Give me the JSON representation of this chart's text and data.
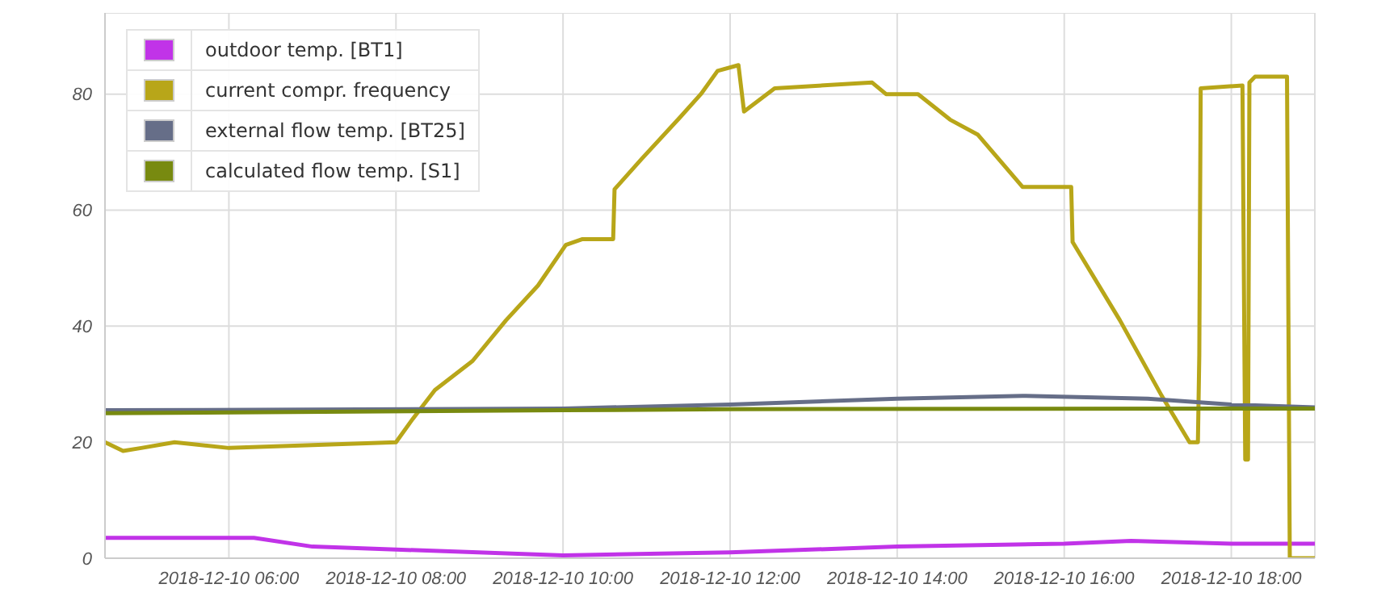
{
  "chart_data": {
    "type": "line",
    "x": [
      "2018-12-10T04:31",
      "2018-12-10T04:44",
      "2018-12-10T04:57",
      "2018-12-10T05:21",
      "2018-12-10T06:00",
      "2018-12-10T08:00",
      "2018-12-10T08:12",
      "2018-12-10T08:28",
      "2018-12-10T08:55",
      "2018-12-10T09:19",
      "2018-12-10T09:42",
      "2018-12-10T10:02",
      "2018-12-10T10:14",
      "2018-12-10T10:36",
      "2018-12-10T10:37",
      "2018-12-10T10:56",
      "2018-12-10T11:24",
      "2018-12-10T11:39",
      "2018-12-10T11:51",
      "2018-12-10T12:06",
      "2018-12-10T12:10",
      "2018-12-10T12:32",
      "2018-12-10T13:42",
      "2018-12-10T13:52",
      "2018-12-10T14:15",
      "2018-12-10T14:38",
      "2018-12-10T14:58",
      "2018-12-10T15:30",
      "2018-12-10T16:05",
      "2018-12-10T16:06",
      "2018-12-10T16:40",
      "2018-12-10T17:10",
      "2018-12-10T17:30",
      "2018-12-10T17:36",
      "2018-12-10T17:37",
      "2018-12-10T17:38",
      "2018-12-10T18:08",
      "2018-12-10T18:10",
      "2018-12-10T18:12",
      "2018-12-10T18:13",
      "2018-12-10T18:17",
      "2018-12-10T18:40",
      "2018-12-10T18:42",
      "2018-12-10T19:00"
    ],
    "series": [
      {
        "name": "outdoor temp. [BT1]",
        "color": "#c133e8",
        "x": [
          "2018-12-10T04:31",
          "2018-12-10T06:18",
          "2018-12-10T07:00",
          "2018-12-10T08:00",
          "2018-12-10T10:00",
          "2018-12-10T12:00",
          "2018-12-10T14:00",
          "2018-12-10T16:00",
          "2018-12-10T16:48",
          "2018-12-10T18:00",
          "2018-12-10T19:00"
        ],
        "values": [
          3.5,
          3.5,
          2,
          1.5,
          0.5,
          1,
          2,
          2.5,
          3,
          2.5,
          2.5
        ]
      },
      {
        "name": "current compr. frequency",
        "color": "#b8a619",
        "values": [
          20,
          18.5,
          19,
          20,
          19,
          20,
          24,
          29,
          34,
          41,
          47,
          54,
          55,
          55,
          63.6,
          68.7,
          76,
          80,
          84,
          85,
          77,
          81,
          82,
          80,
          80,
          75.6,
          73,
          64,
          64,
          54.5,
          41,
          28,
          20,
          20,
          35,
          81,
          81.5,
          17,
          17,
          82,
          83,
          83,
          0,
          0
        ]
      },
      {
        "name": "external flow temp. [BT25]",
        "color": "#666e88",
        "x": [
          "2018-12-10T04:31",
          "2018-12-10T10:00",
          "2018-12-10T12:00",
          "2018-12-10T14:00",
          "2018-12-10T15:30",
          "2018-12-10T17:00",
          "2018-12-10T18:00",
          "2018-12-10T19:00"
        ],
        "values": [
          25.5,
          25.8,
          26.5,
          27.5,
          28,
          27.5,
          26.5,
          26
        ]
      },
      {
        "name": "calculated flow temp. [S1]",
        "color": "#788a10",
        "x": [
          "2018-12-10T04:31",
          "2018-12-10T10:00",
          "2018-12-10T12:00",
          "2018-12-10T19:00"
        ],
        "values": [
          25,
          25.5,
          25.7,
          25.8
        ]
      }
    ],
    "xlim": [
      "2018-12-10T04:31",
      "2018-12-10T19:00"
    ],
    "xticks": [
      {
        "value": "2018-12-10T06:00",
        "label": "2018-12-10 06:00"
      },
      {
        "value": "2018-12-10T08:00",
        "label": "2018-12-10 08:00"
      },
      {
        "value": "2018-12-10T10:00",
        "label": "2018-12-10 10:00"
      },
      {
        "value": "2018-12-10T12:00",
        "label": "2018-12-10 12:00"
      },
      {
        "value": "2018-12-10T14:00",
        "label": "2018-12-10 14:00"
      },
      {
        "value": "2018-12-10T16:00",
        "label": "2018-12-10 16:00"
      },
      {
        "value": "2018-12-10T18:00",
        "label": "2018-12-10 18:00"
      }
    ],
    "ylim": [
      0,
      94
    ],
    "yticks": [
      0,
      20,
      40,
      60,
      80
    ],
    "grid": true,
    "legend": "top left",
    "marker": "none",
    "line_style": "solid"
  }
}
